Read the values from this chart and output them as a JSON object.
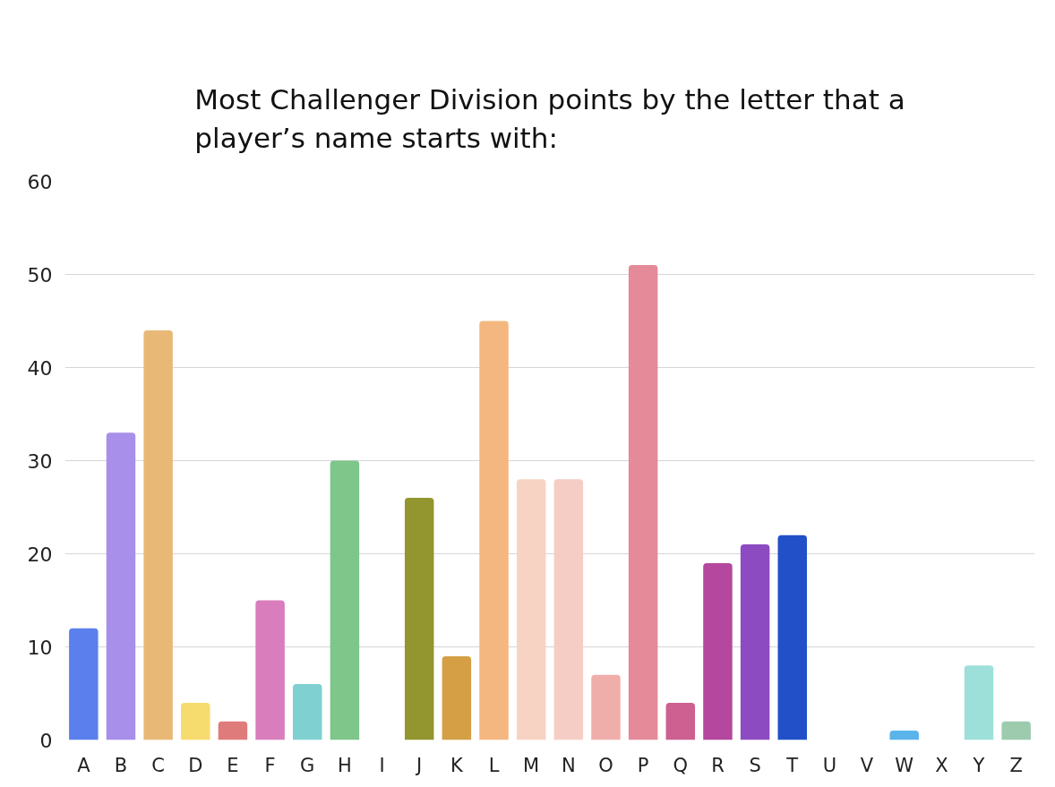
{
  "chart_data": {
    "type": "bar",
    "title": "Most Challenger Division points by the letter that a player’s name starts with:",
    "categories": [
      "A",
      "B",
      "C",
      "D",
      "E",
      "F",
      "G",
      "H",
      "I",
      "J",
      "K",
      "L",
      "M",
      "N",
      "O",
      "P",
      "Q",
      "R",
      "S",
      "T",
      "U",
      "V",
      "W",
      "X",
      "Y",
      "Z"
    ],
    "values": [
      12,
      33,
      44,
      4,
      2,
      15,
      6,
      30,
      0,
      26,
      9,
      45,
      28,
      28,
      7,
      51,
      4,
      19,
      21,
      22,
      0,
      0,
      1,
      0,
      8,
      2
    ],
    "colors": [
      "#5b7fec",
      "#a78fea",
      "#e8b976",
      "#f6dc6e",
      "#e07b7b",
      "#d97dbd",
      "#7fd0d0",
      "#7ec68a",
      "#cccccc",
      "#93962f",
      "#d49f45",
      "#f3b77f",
      "#f7d3c3",
      "#f6cdc4",
      "#f0aeaa",
      "#e48a98",
      "#cd6090",
      "#b5479e",
      "#8d4bc2",
      "#2150c9",
      "#cccccc",
      "#cccccc",
      "#5ab4ea",
      "#cccccc",
      "#9de0da",
      "#9ccbae"
    ],
    "ylim": [
      0,
      60
    ],
    "yticks": [
      0,
      10,
      20,
      30,
      40,
      50,
      60
    ],
    "grid": "y"
  }
}
